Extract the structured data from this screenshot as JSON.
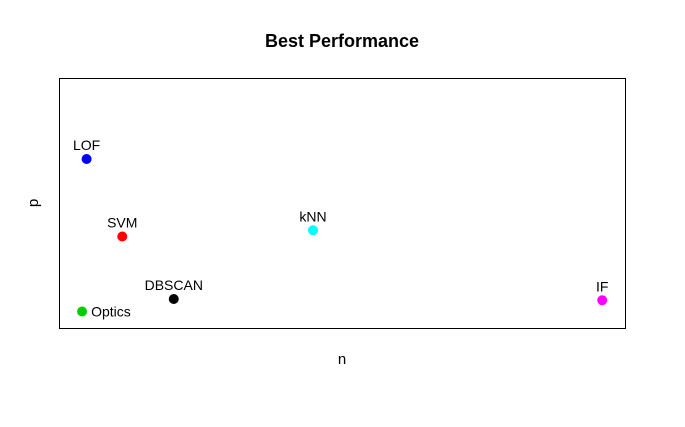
{
  "chart_data": {
    "type": "scatter",
    "title": "Best Performance",
    "xlabel": "n",
    "ylabel": "p",
    "xlim": [
      0,
      1
    ],
    "ylim": [
      0,
      1
    ],
    "axis_ticks": false,
    "grid": false,
    "points": [
      {
        "label": "LOF",
        "x": 0.047,
        "y": 0.68,
        "color": "#0000FF",
        "label_pos": "above"
      },
      {
        "label": "SVM",
        "x": 0.11,
        "y": 0.37,
        "color": "#FF0000",
        "label_pos": "above"
      },
      {
        "label": "kNN",
        "x": 0.447,
        "y": 0.395,
        "color": "#00FFFF",
        "label_pos": "above"
      },
      {
        "label": "DBSCAN",
        "x": 0.201,
        "y": 0.12,
        "color": "#000000",
        "label_pos": "above"
      },
      {
        "label": "Optics",
        "x": 0.039,
        "y": 0.07,
        "color": "#00CD00",
        "label_pos": "right"
      },
      {
        "label": "IF",
        "x": 0.958,
        "y": 0.115,
        "color": "#FF00FF",
        "label_pos": "above"
      }
    ]
  }
}
